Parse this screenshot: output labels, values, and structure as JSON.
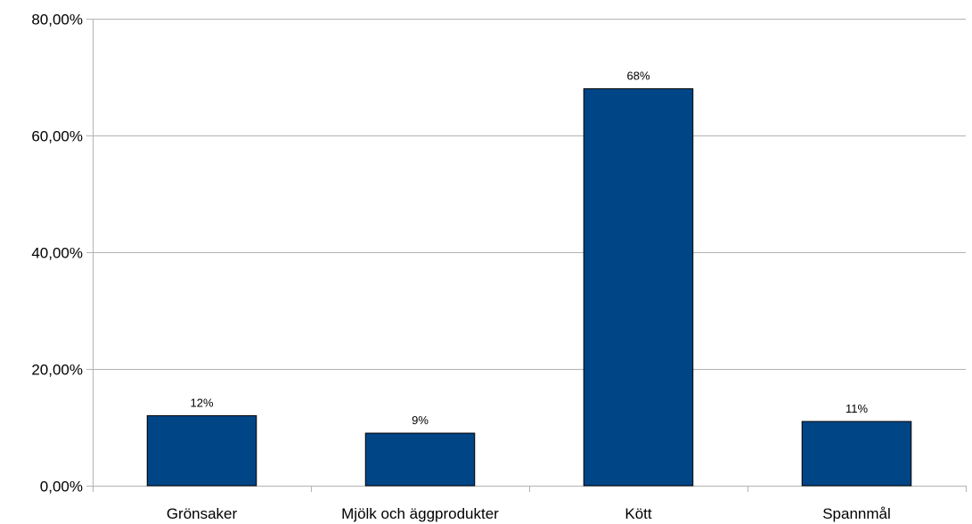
{
  "chart_data": {
    "type": "bar",
    "categories": [
      "Grönsaker",
      "Mjölk och äggprodukter",
      "Kött",
      "Spannmål"
    ],
    "values": [
      0.12,
      0.09,
      0.68,
      0.11
    ],
    "data_labels": [
      "12%",
      "9%",
      "68%",
      "11%"
    ],
    "y_ticks": [
      0,
      0.2,
      0.4,
      0.6,
      0.8
    ],
    "y_tick_labels": [
      "0,00%",
      "20,00%",
      "40,00%",
      "60,00%",
      "80,00%"
    ],
    "ylim": [
      0,
      0.8
    ],
    "grid": true,
    "legend": false,
    "bar_color": "#004586",
    "grid_color": "#b3b3b3"
  }
}
